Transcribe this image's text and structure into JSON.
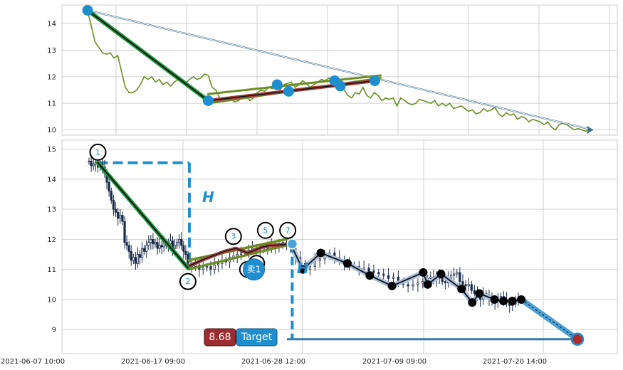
{
  "chart_data": [
    {
      "type": "line",
      "panel": "top",
      "ylim": [
        9.8,
        14.7
      ],
      "yticks": [
        10,
        11,
        12,
        13,
        14
      ],
      "grid": true,
      "series_color": "#6b8e23",
      "line_series": [
        14.5,
        13.9,
        13.3,
        13.1,
        12.9,
        12.85,
        12.9,
        12.7,
        12.8,
        12.2,
        11.6,
        11.4,
        11.4,
        11.5,
        11.7,
        12.0,
        11.9,
        12.0,
        11.8,
        11.9,
        11.7,
        11.8,
        11.65,
        11.8,
        11.9,
        11.85,
        11.75,
        11.9,
        12.0,
        11.9,
        11.95,
        12.1,
        12.05,
        11.6,
        11.5,
        11.2,
        11.1,
        11.15,
        11.2,
        11.05,
        11.1,
        11.2,
        11.3,
        11.1,
        11.2,
        11.4,
        11.5,
        11.45,
        11.6,
        11.55,
        11.65,
        11.5,
        11.7,
        11.75,
        11.8,
        11.6,
        11.7,
        11.85,
        11.75,
        11.6,
        11.7,
        11.8,
        11.9,
        11.85,
        11.95,
        11.8,
        11.9,
        11.7,
        11.5,
        11.3,
        11.2,
        11.4,
        11.35,
        11.6,
        11.3,
        11.2,
        11.4,
        11.3,
        11.1,
        11.2,
        11.15,
        11.2,
        10.9,
        11.2,
        11.1,
        11.0,
        10.95,
        11.0,
        11.15,
        11.1,
        11.05,
        11.0,
        11.1,
        10.9,
        11.0,
        10.9,
        11.0,
        10.8,
        10.85,
        10.9,
        10.8,
        10.7,
        10.75,
        10.6,
        10.65,
        10.8,
        10.7,
        10.75,
        10.85,
        10.6,
        10.5,
        10.65,
        10.55,
        10.6,
        10.4,
        10.5,
        10.45,
        10.3,
        10.4,
        10.35,
        10.3,
        10.2,
        10.3,
        10.1,
        10.0,
        10.2,
        10.25,
        10.2,
        10.1,
        10.0,
        10.05,
        10.0,
        9.95,
        10.0,
        10.0
      ],
      "markers": [
        {
          "t": 0,
          "y": 14.5
        },
        {
          "t": 21,
          "y": 11.1
        },
        {
          "t": 33,
          "y": 11.7
        },
        {
          "t": 35,
          "y": 11.45
        },
        {
          "t": 43,
          "y": 11.85
        },
        {
          "t": 44,
          "y": 11.65
        },
        {
          "t": 50,
          "y": 11.85
        }
      ],
      "segments": [
        {
          "from": [
            0,
            14.5
          ],
          "to": [
            21,
            11.1
          ],
          "color": "#1e9a3c",
          "width": 6
        },
        {
          "from": [
            0,
            14.5
          ],
          "to": [
            21,
            11.1
          ],
          "color": "#111111",
          "width": 2
        },
        {
          "from": [
            21,
            11.0
          ],
          "to": [
            51,
            11.95
          ],
          "color": "#6b8e23",
          "width": 3
        },
        {
          "from": [
            21,
            11.35
          ],
          "to": [
            51,
            12.05
          ],
          "color": "#6b8e23",
          "width": 3
        },
        {
          "from": [
            21,
            11.1
          ],
          "to": [
            50,
            11.85
          ],
          "color": "#a0403a",
          "width": 5
        },
        {
          "from": [
            21,
            11.1
          ],
          "to": [
            50,
            11.85
          ],
          "color": "#111111",
          "width": 1.5
        }
      ],
      "arrow": {
        "from": [
          0,
          14.5
        ],
        "to": [
          88,
          10.0
        ]
      }
    },
    {
      "type": "candlestick",
      "panel": "bottom",
      "ylim": [
        8.2,
        15.3
      ],
      "yticks": [
        9,
        10,
        11,
        12,
        13,
        14,
        15
      ],
      "grid": true,
      "x_tick_labels": [
        "2021-06-07 10:00",
        "2021-06-17 09:00",
        "2021-06-28 12:00",
        "2021-07-09 09:00",
        "2021-07-20 14:00"
      ],
      "up_color": "#1a2a4a",
      "down_color": "#1a2a4a",
      "candles_close": [
        14.6,
        14.45,
        14.5,
        14.55,
        14.4,
        14.5,
        14.4,
        14.2,
        13.9,
        13.6,
        13.3,
        13.0,
        12.9,
        12.7,
        12.8,
        12.6,
        11.9,
        11.8,
        11.6,
        11.3,
        11.4,
        11.2,
        11.5,
        11.4,
        11.7,
        11.6,
        11.8,
        11.9,
        12.0,
        11.85,
        11.9,
        11.7,
        11.8,
        11.75,
        11.9,
        11.8,
        11.85,
        11.95,
        11.7,
        11.8,
        11.9,
        12.0,
        11.8,
        11.6,
        11.5,
        11.2,
        11.1,
        11.15,
        11.0,
        11.05,
        11.1,
        11.0,
        11.15,
        11.2,
        11.3,
        11.25,
        11.4,
        11.45,
        11.5,
        11.55,
        11.6,
        11.65,
        11.7,
        11.6,
        11.65,
        11.75,
        11.7,
        11.8,
        11.75,
        11.8,
        11.9,
        11.85,
        11.7,
        11.4,
        11.2,
        11.0,
        11.1,
        11.3,
        11.35,
        11.45,
        11.55,
        11.4,
        11.3,
        11.2,
        11.15,
        11.1,
        11.0,
        11.05,
        10.95,
        10.9,
        10.85,
        10.8,
        10.7,
        10.75,
        10.6,
        10.5,
        10.45,
        10.5,
        10.55,
        10.6,
        10.7,
        10.75,
        10.65,
        10.8,
        10.7,
        10.6,
        10.55,
        10.7,
        10.8,
        10.85,
        10.9,
        10.6,
        10.5,
        10.45,
        10.5,
        10.3,
        10.2,
        10.1,
        10.0,
        10.2,
        10.15,
        10.0,
        9.95,
        9.9,
        10.0,
        10.1,
        10.0,
        9.9,
        9.8,
        9.85,
        10.0,
        10.05
      ],
      "numbered_points": [
        {
          "label": "1",
          "t": 10,
          "y": 14.9
        },
        {
          "label": "2",
          "t": 111,
          "y": 10.6
        },
        {
          "label": "3",
          "t": 162,
          "y": 12.1
        },
        {
          "label": "5",
          "t": 198,
          "y": 12.3
        },
        {
          "label": "6",
          "t": 188,
          "y": 11.2
        },
        {
          "label": "7",
          "t": 223,
          "y": 12.3
        }
      ],
      "sell_marker": {
        "label": "卖1",
        "t": 185,
        "y": 11.0
      },
      "h_label": "H",
      "target": {
        "value_label": "8.68",
        "text": "Target",
        "value": 8.68
      },
      "pattern_lines": [
        {
          "from": [
            10,
            14.55
          ],
          "to": [
            111,
            11.05
          ],
          "color": "#1e9a3c",
          "width": 6
        },
        {
          "from": [
            10,
            14.55
          ],
          "to": [
            111,
            11.05
          ],
          "color": "#111111",
          "width": 2
        }
      ],
      "wedge_upper": {
        "from": [
          111,
          11.3
        ],
        "to": [
          228,
          12.05
        ]
      },
      "wedge_lower": {
        "from": [
          111,
          11.0
        ],
        "to": [
          228,
          11.85
        ]
      },
      "red_path": [
        [
          111,
          11.1
        ],
        [
          130,
          11.35
        ],
        [
          152,
          11.6
        ],
        [
          165,
          11.7
        ],
        [
          178,
          11.55
        ],
        [
          195,
          11.75
        ],
        [
          205,
          11.8
        ],
        [
          228,
          11.85
        ]
      ],
      "projection_path": [
        [
          226,
          11.85
        ],
        [
          240,
          11.0
        ],
        [
          260,
          11.55
        ],
        [
          290,
          11.2
        ],
        [
          315,
          10.8
        ],
        [
          340,
          10.45
        ],
        [
          375,
          10.9
        ],
        [
          380,
          10.5
        ],
        [
          395,
          10.85
        ],
        [
          418,
          10.35
        ],
        [
          430,
          9.9
        ],
        [
          438,
          10.2
        ],
        [
          455,
          10.0
        ],
        [
          465,
          9.95
        ],
        [
          475,
          9.95
        ],
        [
          485,
          10.0
        ]
      ],
      "projection_end": [
        548,
        8.68
      ],
      "dashed_box": {
        "x1": 10,
        "x2": 111,
        "ytop": 14.55
      },
      "dashed_vertical": {
        "t": 228,
        "y1": 11.85,
        "y2": 8.68
      },
      "sell_price_dot": [
        228,
        11.85
      ]
    }
  ]
}
